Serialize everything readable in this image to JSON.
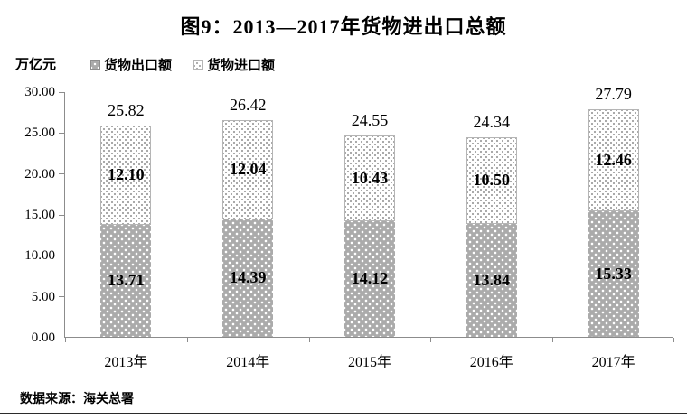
{
  "title": "图9：2013—2017年货物进出口总额",
  "y_axis_unit": "万亿元",
  "legend": [
    {
      "label": "货物出口额",
      "swatch": "gray-white-dot-pattern"
    },
    {
      "label": "货物进口额",
      "swatch": "white-gray-dot-pattern"
    }
  ],
  "source": "数据来源：海关总署",
  "colors": {
    "export_fill": "#ababab",
    "export_dot": "#ffffff",
    "import_fill": "#ffffff",
    "import_dot": "#9a9a9a",
    "axis": "#8c8c8c",
    "text": "#000000",
    "bottom_rule": "#2b2b2b"
  },
  "chart_data": {
    "type": "bar",
    "stacked": true,
    "title": "图9：2013—2017年货物进出口总额",
    "ylabel": "万亿元",
    "categories": [
      "2013年",
      "2014年",
      "2015年",
      "2016年",
      "2017年"
    ],
    "series": [
      {
        "name": "货物出口额",
        "values": [
          13.71,
          14.39,
          14.12,
          13.84,
          15.33
        ]
      },
      {
        "name": "货物进口额",
        "values": [
          12.1,
          12.04,
          10.43,
          10.5,
          12.46
        ]
      }
    ],
    "totals": [
      25.82,
      26.42,
      24.55,
      24.34,
      27.79
    ],
    "ylim": [
      0,
      30
    ],
    "ytick_step": 5,
    "yticks": [
      "30.00",
      "25.00",
      "20.00",
      "15.00",
      "10.00",
      "5.00",
      "0.00"
    ],
    "grid": false,
    "legend_position": "top-left"
  }
}
